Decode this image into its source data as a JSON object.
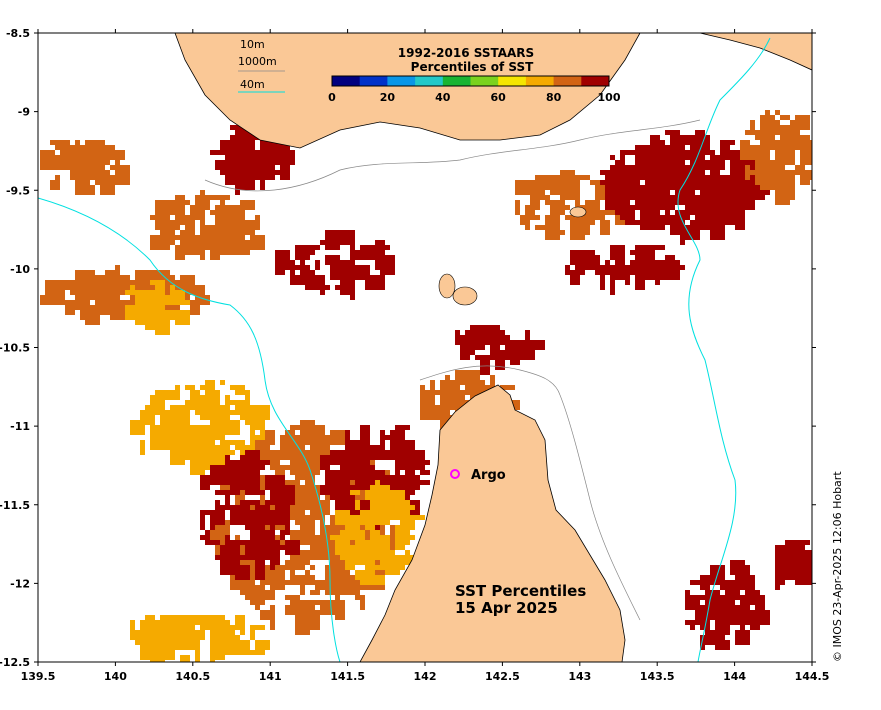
{
  "map": {
    "lon_ticks": [
      "139.5",
      "140",
      "140.5",
      "141",
      "141.5",
      "142",
      "142.5",
      "143",
      "143.5",
      "144",
      "144.5"
    ],
    "lat_ticks": [
      "-8.5",
      "-9",
      "-9.5",
      "-10",
      "-10.5",
      "-11",
      "-11.5",
      "-12",
      "-12.5"
    ],
    "legend": {
      "line1": "10m",
      "line2": "1000m",
      "line3": "40m"
    },
    "colorbar": {
      "title_line1": "1992-2016 SSTAARS",
      "title_line2": "Percentiles of SST",
      "labels": [
        "0",
        "20",
        "40",
        "60",
        "80",
        "100"
      ],
      "colors": [
        "#00007f",
        "#0032c8",
        "#0a96e6",
        "#23c8c8",
        "#19b432",
        "#7ad21e",
        "#f5e600",
        "#f5aa00",
        "#d26414",
        "#a00000"
      ]
    },
    "argo_label": "Argo",
    "title_line1": "SST Percentiles",
    "title_line2": "15 Apr 2025",
    "credit": "© IMOS 23-Apr-2025 12:06 Hobart"
  },
  "colors": {
    "land": "#fac896",
    "dark_red": "#a00000",
    "orange": "#d26414",
    "amber": "#f5aa00",
    "cyan": "#00e0e0",
    "argo": "#ff00ff"
  }
}
